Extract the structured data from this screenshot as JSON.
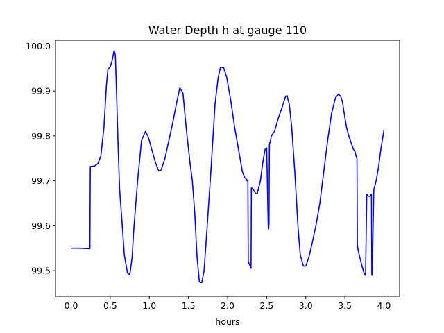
{
  "chart_data": {
    "type": "line",
    "title": "Water Depth h at gauge 110",
    "xlabel": "hours",
    "ylabel": "",
    "xlim": [
      -0.2,
      4.2
    ],
    "ylim": [
      99.443,
      100.013
    ],
    "xticks": [
      0.0,
      0.5,
      1.0,
      1.5,
      2.0,
      2.5,
      3.0,
      3.5,
      4.0
    ],
    "xtick_labels": [
      "0.0",
      "0.5",
      "1.0",
      "1.5",
      "2.0",
      "2.5",
      "3.0",
      "3.5",
      "4.0"
    ],
    "yticks": [
      99.5,
      99.6,
      99.7,
      99.8,
      99.9,
      100.0
    ],
    "ytick_labels": [
      "99.5",
      "99.6",
      "99.7",
      "99.8",
      "99.9",
      "100.0"
    ],
    "grid": false,
    "series": [
      {
        "color": "#0000ff",
        "x": [
          0.0,
          0.1,
          0.24,
          0.245,
          0.3,
          0.34,
          0.38,
          0.42,
          0.45,
          0.47,
          0.5,
          0.52,
          0.55,
          0.565,
          0.58,
          0.6,
          0.62,
          0.65,
          0.68,
          0.72,
          0.75,
          0.78,
          0.8,
          0.85,
          0.9,
          0.95,
          0.98,
          1.0,
          1.03,
          1.08,
          1.12,
          1.15,
          1.2,
          1.25,
          1.3,
          1.35,
          1.39,
          1.43,
          1.47,
          1.52,
          1.55,
          1.58,
          1.61,
          1.64,
          1.67,
          1.7,
          1.74,
          1.79,
          1.84,
          1.88,
          1.91,
          1.95,
          1.99,
          2.04,
          2.09,
          2.14,
          2.19,
          2.22,
          2.245,
          2.25,
          2.26,
          2.265,
          2.29,
          2.3,
          2.305,
          2.33,
          2.36,
          2.38,
          2.42,
          2.45,
          2.48,
          2.5,
          2.52,
          2.525,
          2.53,
          2.535,
          2.54,
          2.545,
          2.55,
          2.56,
          2.6,
          2.65,
          2.7,
          2.74,
          2.76,
          2.79,
          2.82,
          2.86,
          2.9,
          2.93,
          2.97,
          3.0,
          3.04,
          3.08,
          3.13,
          3.18,
          3.23,
          3.28,
          3.33,
          3.38,
          3.42,
          3.45,
          3.47,
          3.49,
          3.52,
          3.55,
          3.58,
          3.61,
          3.63,
          3.645,
          3.655,
          3.66,
          3.665,
          3.69,
          3.72,
          3.745,
          3.76,
          3.765,
          3.78,
          3.8,
          3.82,
          3.835,
          3.84,
          3.845,
          3.85,
          3.87,
          3.9,
          3.93,
          3.96,
          4.0
        ],
        "y": [
          99.55,
          99.55,
          99.549,
          99.732,
          99.733,
          99.738,
          99.755,
          99.82,
          99.91,
          99.948,
          99.954,
          99.965,
          99.99,
          99.98,
          99.9,
          99.78,
          99.68,
          99.61,
          99.535,
          99.495,
          99.491,
          99.53,
          99.59,
          99.7,
          99.79,
          99.81,
          99.8,
          99.79,
          99.77,
          99.74,
          99.722,
          99.724,
          99.75,
          99.79,
          99.83,
          99.875,
          99.907,
          99.895,
          99.82,
          99.74,
          99.7,
          99.63,
          99.53,
          99.475,
          99.473,
          99.5,
          99.6,
          99.73,
          99.87,
          99.93,
          99.953,
          99.952,
          99.93,
          99.88,
          99.82,
          99.77,
          99.72,
          99.707,
          99.703,
          99.7,
          99.7,
          99.52,
          99.51,
          99.505,
          99.685,
          99.68,
          99.672,
          99.672,
          99.7,
          99.74,
          99.77,
          99.773,
          99.6,
          99.593,
          99.605,
          99.78,
          99.785,
          99.785,
          99.79,
          99.8,
          99.81,
          99.84,
          99.865,
          99.887,
          99.89,
          99.87,
          99.82,
          99.72,
          99.6,
          99.535,
          99.51,
          99.51,
          99.53,
          99.56,
          99.6,
          99.65,
          99.72,
          99.79,
          99.85,
          99.885,
          99.893,
          99.887,
          99.875,
          99.852,
          99.82,
          99.8,
          99.785,
          99.77,
          99.765,
          99.754,
          99.75,
          99.56,
          99.55,
          99.53,
          99.51,
          99.495,
          99.49,
          99.49,
          99.67,
          99.666,
          99.665,
          99.67,
          99.67,
          99.49,
          99.49,
          99.68,
          99.7,
          99.73,
          99.77,
          99.813
        ]
      }
    ]
  }
}
